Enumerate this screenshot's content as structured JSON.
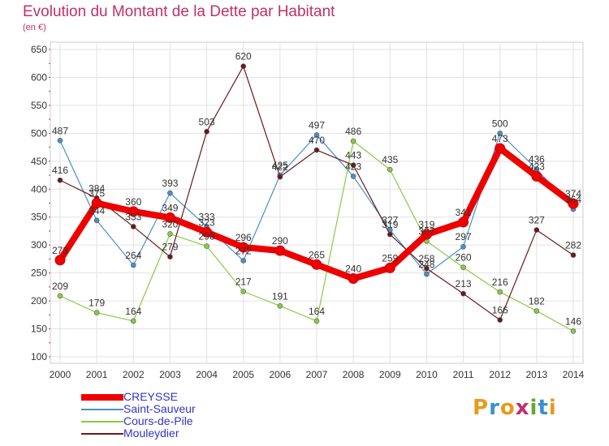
{
  "header": {
    "title": "Evolution du Montant de la Dette par Habitant",
    "unit": "(en €)"
  },
  "logo": {
    "letters": [
      "P",
      "r",
      "o",
      "x",
      "i",
      "t",
      "i"
    ],
    "colors": [
      "#e89a1a",
      "#3a8fd0",
      "#e89a1a",
      "#c0306a",
      "#6aa72e",
      "#3a8fd0",
      "#e89a1a"
    ]
  },
  "chart_data": {
    "type": "line",
    "title": "Evolution du Montant de la Dette par Habitant",
    "ylabel": "(en €)",
    "xlabel": "",
    "x": [
      "2000",
      "2001",
      "2002",
      "2003",
      "2004",
      "2005",
      "2006",
      "2007",
      "2008",
      "2009",
      "2010",
      "2011",
      "2012",
      "2013",
      "2014"
    ],
    "ylim": [
      100,
      650
    ],
    "yticks": [
      100,
      150,
      200,
      250,
      300,
      350,
      400,
      450,
      500,
      550,
      600,
      650
    ],
    "grid": true,
    "legend_position": "bottom-left",
    "series": [
      {
        "name": "CREYSSE",
        "color": "#ee0000",
        "values": [
          273,
          375,
          360,
          349,
          323,
          296,
          290,
          265,
          240,
          259,
          319,
          341,
          473,
          423,
          374
        ]
      },
      {
        "name": "Saint-Sauveur",
        "color": "#4a90c8",
        "values": [
          487,
          344,
          264,
          393,
          333,
          272,
          425,
          497,
          423,
          327,
          248,
          297,
          500,
          436,
          364
        ]
      },
      {
        "name": "Cours-de-Pile",
        "color": "#88cc44",
        "values": [
          209,
          179,
          164,
          320,
          298,
          217,
          191,
          164,
          486,
          435,
          307,
          260,
          216,
          182,
          146
        ]
      },
      {
        "name": "Mouleydier",
        "color": "#6b1a1a",
        "values": [
          416,
          384,
          333,
          279,
          503,
          620,
          422,
          470,
          443,
          319,
          258,
          213,
          166,
          327,
          282
        ]
      }
    ]
  }
}
